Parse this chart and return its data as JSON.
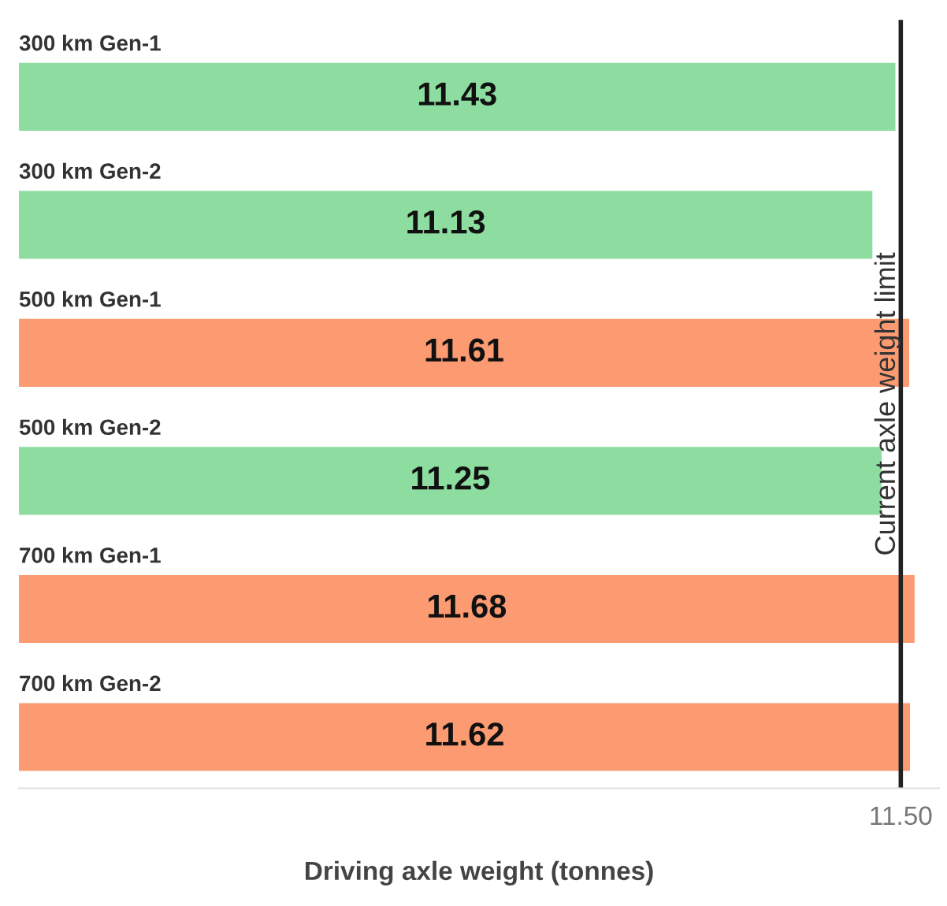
{
  "chart_data": {
    "type": "bar",
    "orientation": "horizontal",
    "xlabel": "Driving axle weight (tonnes)",
    "categories": [
      "300 km Gen-1",
      "300 km Gen-2",
      "500 km Gen-1",
      "500 km Gen-2",
      "700 km Gen-1",
      "700 km Gen-2"
    ],
    "values": [
      11.43,
      11.13,
      11.61,
      11.25,
      11.68,
      11.62
    ],
    "colors": [
      "#8ddda0",
      "#8ddda0",
      "#fc9b72",
      "#8ddda0",
      "#fc9b72",
      "#fc9b72"
    ],
    "xlim": [
      0,
      12
    ],
    "xticks": [
      {
        "value": 11.5,
        "label": "11.50"
      }
    ],
    "ref_lines": [
      {
        "axis": "x",
        "value": 11.5,
        "label": "Current axle weight limit",
        "color": "#222222"
      }
    ],
    "data_labels": true,
    "grid": false,
    "legend": false
  }
}
